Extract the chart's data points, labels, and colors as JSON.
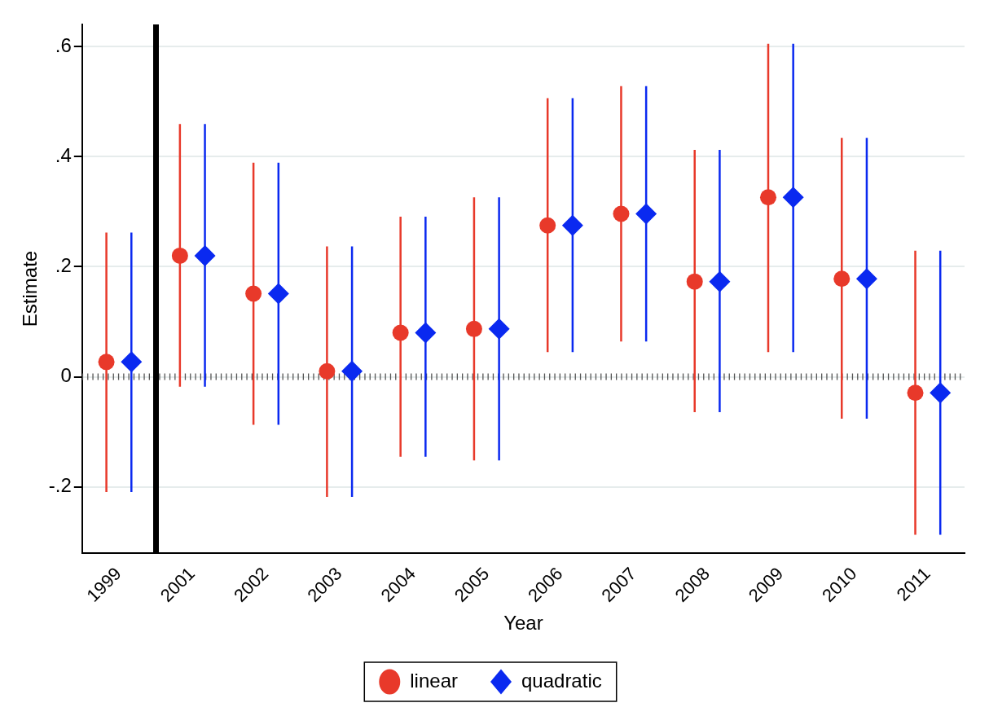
{
  "chart_data": {
    "type": "scatter",
    "xlabel": "Year",
    "ylabel": "Estimate",
    "categories": [
      "1999",
      "2001",
      "2002",
      "2003",
      "2004",
      "2005",
      "2006",
      "2007",
      "2008",
      "2009",
      "2010",
      "2011"
    ],
    "ylim": [
      -0.32,
      0.64
    ],
    "yticks": [
      {
        "value": -0.2,
        "label": "-.2"
      },
      {
        "value": 0,
        "label": "0"
      },
      {
        "value": 0.2,
        "label": ".2"
      },
      {
        "value": 0.4,
        "label": ".4"
      },
      {
        "value": 0.6,
        "label": ".6"
      }
    ],
    "grid": "y",
    "legend": "bottom",
    "series": [
      {
        "name": "linear",
        "color": "#e8392a",
        "marker": "circle",
        "values": [
          0.027,
          0.22,
          0.151,
          0.01,
          0.08,
          0.087,
          0.275,
          0.296,
          0.173,
          0.326,
          0.178,
          -0.029
        ],
        "errors": [
          [
            -0.209,
            0.262
          ],
          [
            -0.018,
            0.459
          ],
          [
            -0.087,
            0.389
          ],
          [
            -0.218,
            0.237
          ],
          [
            -0.145,
            0.291
          ],
          [
            -0.152,
            0.326
          ],
          [
            0.045,
            0.506
          ],
          [
            0.064,
            0.528
          ],
          [
            -0.064,
            0.412
          ],
          [
            0.045,
            0.605
          ],
          [
            -0.076,
            0.434
          ],
          [
            -0.287,
            0.229
          ]
        ]
      },
      {
        "name": "quadratic",
        "color": "#0a29f0",
        "marker": "diamond",
        "values": [
          0.027,
          0.22,
          0.151,
          0.01,
          0.08,
          0.087,
          0.275,
          0.296,
          0.173,
          0.326,
          0.178,
          -0.029
        ],
        "errors": [
          [
            -0.209,
            0.262
          ],
          [
            -0.018,
            0.459
          ],
          [
            -0.087,
            0.389
          ],
          [
            -0.218,
            0.237
          ],
          [
            -0.145,
            0.291
          ],
          [
            -0.152,
            0.326
          ],
          [
            0.045,
            0.506
          ],
          [
            0.064,
            0.528
          ],
          [
            -0.064,
            0.412
          ],
          [
            0.045,
            0.605
          ],
          [
            -0.076,
            0.434
          ],
          [
            -0.287,
            0.229
          ]
        ]
      }
    ],
    "ref_lines": [
      {
        "axis": "y",
        "value": 0,
        "color": "#555555",
        "line_style": "dotted"
      }
    ]
  }
}
